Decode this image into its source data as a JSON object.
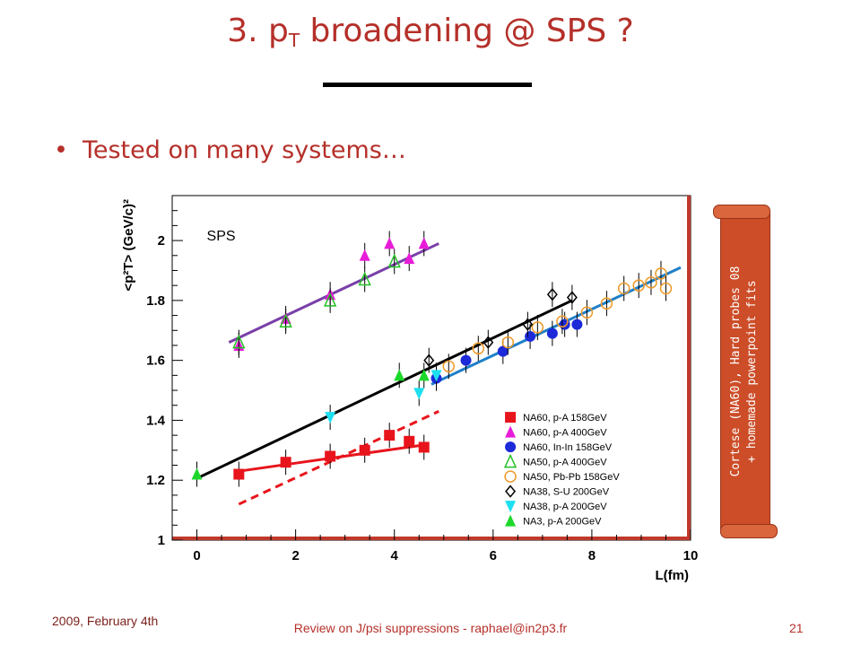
{
  "slide": {
    "title_main": "3. p",
    "title_sub": "T",
    "title_rest": " broadening @ SPS ?",
    "bullet": "Tested on many systems…",
    "scroll_line1": "Cortese (NA60), Hard probes 08",
    "scroll_line2": "+ homemade powerpoint fits",
    "footer_date": "2009, February 4th",
    "footer_center": "Review on J/psi suppressions - raphael@in2p3.fr",
    "footer_page": "21"
  },
  "colors": {
    "title": "#b5302a",
    "scroll": "#cc4d28"
  },
  "chart_data": {
    "type": "scatter",
    "annotation": "SPS",
    "xlabel": "L(fm)",
    "ylabel": "<p²T> (GeV/c)²",
    "xlim": [
      -0.5,
      10
    ],
    "ylim": [
      1,
      2.15
    ],
    "xticks": [
      0,
      2,
      4,
      6,
      8,
      10
    ],
    "yticks": [
      1,
      1.2,
      1.4,
      1.6,
      1.8,
      2
    ],
    "legend_position": "bottom-right",
    "series": [
      {
        "name": "NA60, p-A 158GeV",
        "color": "#e8141c",
        "marker": "square",
        "points": [
          [
            0.85,
            1.22
          ],
          [
            1.8,
            1.26
          ],
          [
            2.7,
            1.28
          ],
          [
            3.4,
            1.3
          ],
          [
            3.9,
            1.35
          ],
          [
            4.3,
            1.33
          ],
          [
            4.6,
            1.31
          ]
        ]
      },
      {
        "name": "NA60, p-A 400GeV",
        "color": "#e81cd8",
        "marker": "triangle",
        "points": [
          [
            0.85,
            1.65
          ],
          [
            1.8,
            1.74
          ],
          [
            2.7,
            1.82
          ],
          [
            3.4,
            1.95
          ],
          [
            3.9,
            1.99
          ],
          [
            4.3,
            1.94
          ],
          [
            4.6,
            1.99
          ]
        ]
      },
      {
        "name": "NA60, In-In 158GeV",
        "color": "#1c2ad8",
        "marker": "circle",
        "points": [
          [
            4.85,
            1.54
          ],
          [
            5.45,
            1.6
          ],
          [
            6.2,
            1.63
          ],
          [
            6.75,
            1.68
          ],
          [
            7.2,
            1.69
          ],
          [
            7.45,
            1.72
          ],
          [
            7.7,
            1.72
          ]
        ]
      },
      {
        "name": "NA50, p-A 400GeV",
        "color": "#22c024",
        "marker": "open-triangle",
        "points": [
          [
            0.85,
            1.66
          ],
          [
            1.8,
            1.73
          ],
          [
            2.7,
            1.8
          ],
          [
            3.4,
            1.87
          ],
          [
            4.0,
            1.93
          ]
        ]
      },
      {
        "name": "NA50, Pb-Pb 158GeV",
        "color": "#f09a2a",
        "marker": "open-circle",
        "points": [
          [
            5.1,
            1.58
          ],
          [
            5.7,
            1.64
          ],
          [
            6.3,
            1.66
          ],
          [
            6.9,
            1.71
          ],
          [
            7.4,
            1.73
          ],
          [
            7.9,
            1.76
          ],
          [
            8.3,
            1.79
          ],
          [
            8.65,
            1.84
          ],
          [
            8.95,
            1.85
          ],
          [
            9.2,
            1.86
          ],
          [
            9.4,
            1.89
          ],
          [
            9.5,
            1.84
          ]
        ]
      },
      {
        "name": "NA38, S-U 200GeV",
        "color": "#000000",
        "marker": "open-diamond",
        "points": [
          [
            4.7,
            1.6
          ],
          [
            5.9,
            1.66
          ],
          [
            6.7,
            1.72
          ],
          [
            7.2,
            1.82
          ],
          [
            7.6,
            1.81
          ]
        ]
      },
      {
        "name": "NA38, p-A 200GeV",
        "color": "#1ce0f0",
        "marker": "inverted-triangle",
        "points": [
          [
            2.7,
            1.41
          ],
          [
            4.5,
            1.49
          ],
          [
            4.85,
            1.55
          ]
        ]
      },
      {
        "name": "NA3, p-A 200GeV",
        "color": "#1cd82a",
        "marker": "triangle",
        "points": [
          [
            0.0,
            1.22
          ],
          [
            4.1,
            1.55
          ],
          [
            4.6,
            1.55
          ]
        ]
      }
    ],
    "fits": [
      {
        "color": "#7a3fa8",
        "style": "solid",
        "from": [
          0.65,
          1.66
        ],
        "to": [
          4.9,
          1.99
        ]
      },
      {
        "color": "#000000",
        "style": "solid",
        "from": [
          0.05,
          1.21
        ],
        "to": [
          7.6,
          1.8
        ]
      },
      {
        "color": "#1f7fc8",
        "style": "solid",
        "from": [
          4.75,
          1.52
        ],
        "to": [
          9.8,
          1.91
        ]
      },
      {
        "color": "#e8141c",
        "style": "solid",
        "from": [
          0.85,
          1.23
        ],
        "to": [
          4.7,
          1.32
        ]
      },
      {
        "color": "#e8141c",
        "style": "dashed",
        "from": [
          0.85,
          1.12
        ],
        "to": [
          4.9,
          1.43
        ]
      }
    ]
  }
}
